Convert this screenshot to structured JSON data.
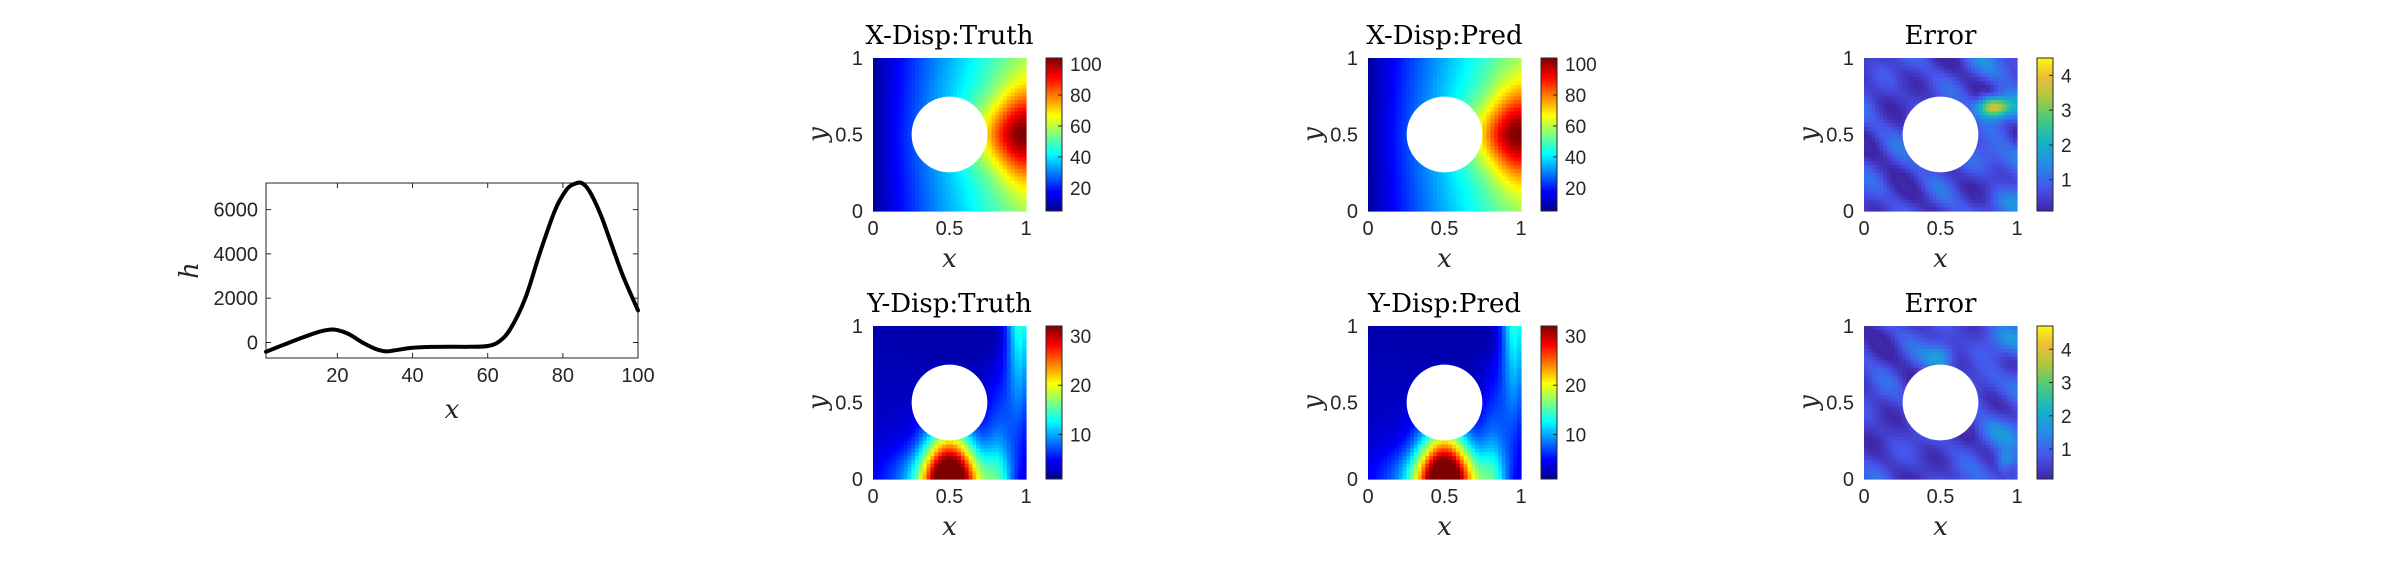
{
  "chart_data": [
    {
      "type": "line",
      "title": "",
      "xlabel": "x",
      "ylabel": "h",
      "xlim": [
        1,
        100
      ],
      "ylim": [
        -700,
        7200
      ],
      "xticks": [
        20,
        40,
        60,
        80,
        100
      ],
      "yticks": [
        0,
        2000,
        4000,
        6000
      ],
      "grid": false,
      "series": [
        {
          "color": "#000000",
          "x": [
            1,
            5,
            10,
            15,
            18,
            20,
            23,
            27,
            30,
            33,
            35,
            40,
            45,
            50,
            55,
            60,
            63,
            66,
            70,
            74,
            78,
            81,
            83,
            85,
            87,
            90,
            93,
            96,
            100
          ],
          "y": [
            -420,
            -150,
            180,
            480,
            580,
            560,
            380,
            -30,
            -280,
            -400,
            -360,
            -240,
            -200,
            -190,
            -195,
            -160,
            40,
            600,
            2000,
            4100,
            6000,
            6900,
            7150,
            7200,
            6850,
            5800,
            4400,
            3000,
            1450
          ]
        }
      ]
    },
    {
      "type": "heatmap",
      "title": "X-Disp:Truth",
      "xlabel": "x",
      "ylabel": "y",
      "xticks": [
        "0",
        "0.5",
        "1"
      ],
      "yticks": [
        "0",
        "0.5",
        "1"
      ],
      "colormap": "jet",
      "colorbar_ticks": [
        20,
        40,
        60,
        80,
        100
      ],
      "color_range": [
        5,
        104
      ],
      "hole": {
        "cx": 0.5,
        "cy": 0.5,
        "r": 0.25
      }
    },
    {
      "type": "heatmap",
      "title": "X-Disp:Pred",
      "xlabel": "x",
      "ylabel": "y",
      "xticks": [
        "0",
        "0.5",
        "1"
      ],
      "yticks": [
        "0",
        "0.5",
        "1"
      ],
      "colormap": "jet",
      "colorbar_ticks": [
        20,
        40,
        60,
        80,
        100
      ],
      "color_range": [
        5,
        104
      ],
      "hole": {
        "cx": 0.5,
        "cy": 0.5,
        "r": 0.25
      }
    },
    {
      "type": "heatmap",
      "title": "Error",
      "xlabel": "x",
      "ylabel": "y",
      "xticks": [
        "0",
        "0.5",
        "1"
      ],
      "yticks": [
        "0",
        "0.5",
        "1"
      ],
      "colormap": "parula",
      "colorbar_ticks": [
        1,
        2,
        3,
        4
      ],
      "color_range": [
        0.1,
        4.5
      ],
      "hole": {
        "cx": 0.5,
        "cy": 0.5,
        "r": 0.25
      }
    },
    {
      "type": "heatmap",
      "title": "Y-Disp:Truth",
      "xlabel": "x",
      "ylabel": "y",
      "xticks": [
        "0",
        "0.5",
        "1"
      ],
      "yticks": [
        "0",
        "0.5",
        "1"
      ],
      "colormap": "jet",
      "colorbar_ticks": [
        10,
        20,
        30
      ],
      "color_range": [
        1,
        32
      ],
      "hole": {
        "cx": 0.5,
        "cy": 0.5,
        "r": 0.25
      }
    },
    {
      "type": "heatmap",
      "title": "Y-Disp:Pred",
      "xlabel": "x",
      "ylabel": "y",
      "xticks": [
        "0",
        "0.5",
        "1"
      ],
      "yticks": [
        "0",
        "0.5",
        "1"
      ],
      "colormap": "jet",
      "colorbar_ticks": [
        10,
        20,
        30
      ],
      "color_range": [
        1,
        32
      ],
      "hole": {
        "cx": 0.5,
        "cy": 0.5,
        "r": 0.25
      }
    },
    {
      "type": "heatmap",
      "title": "Error",
      "xlabel": "x",
      "ylabel": "y",
      "xticks": [
        "0",
        "0.5",
        "1"
      ],
      "yticks": [
        "0",
        "0.5",
        "1"
      ],
      "colormap": "parula",
      "colorbar_ticks": [
        1,
        2,
        3,
        4
      ],
      "color_range": [
        0.1,
        4.7
      ],
      "hole": {
        "cx": 0.5,
        "cy": 0.5,
        "r": 0.25
      }
    }
  ]
}
